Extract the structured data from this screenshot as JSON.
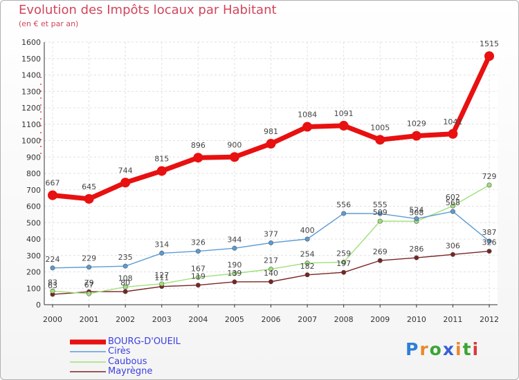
{
  "header": {
    "title": "Evolution des Impôts locaux par Habitant",
    "subtitle": "(en € et par an)"
  },
  "brand": {
    "letters": [
      "P",
      "r",
      "o",
      "x",
      "i",
      "t",
      "i"
    ],
    "colors": [
      "#2e7fd6",
      "#e8892a",
      "#3aa535",
      "#3a5fd6",
      "#e8892a",
      "#3aa535",
      "#d83a3a"
    ]
  },
  "chart_data": {
    "type": "line",
    "title": "Evolution des Impôts locaux par Habitant",
    "subtitle": "(en € et par an)",
    "x": [
      "2000",
      "2001",
      "2002",
      "2003",
      "2004",
      "2005",
      "2006",
      "2007",
      "2008",
      "2009",
      "2010",
      "2011",
      "2012"
    ],
    "ylim": [
      0,
      1600
    ],
    "yticks": [
      0,
      100,
      200,
      300,
      400,
      500,
      600,
      700,
      800,
      900,
      1000,
      1100,
      1200,
      1300,
      1400,
      1500,
      1600
    ],
    "grid": true,
    "legend_position": "bottom-left",
    "series": [
      {
        "name": "BOURG-D'OUEIL",
        "color": "#e81010",
        "values": [
          667,
          645,
          744,
          815,
          896,
          900,
          981,
          1084,
          1091,
          1005,
          1029,
          1041,
          1515
        ]
      },
      {
        "name": "Cirès",
        "color": "#5b9bd5",
        "values": [
          224,
          229,
          235,
          314,
          326,
          344,
          377,
          400,
          556,
          555,
          524,
          568,
          387
        ]
      },
      {
        "name": "Caubous",
        "color": "#9ee07a",
        "values": [
          83,
          67,
          108,
          127,
          167,
          190,
          217,
          254,
          259,
          509,
          508,
          602,
          729
        ]
      },
      {
        "name": "Mayrègne",
        "color": "#7a2323",
        "values": [
          63,
          79,
          80,
          111,
          119,
          139,
          140,
          182,
          197,
          269,
          286,
          306,
          326
        ]
      }
    ]
  }
}
